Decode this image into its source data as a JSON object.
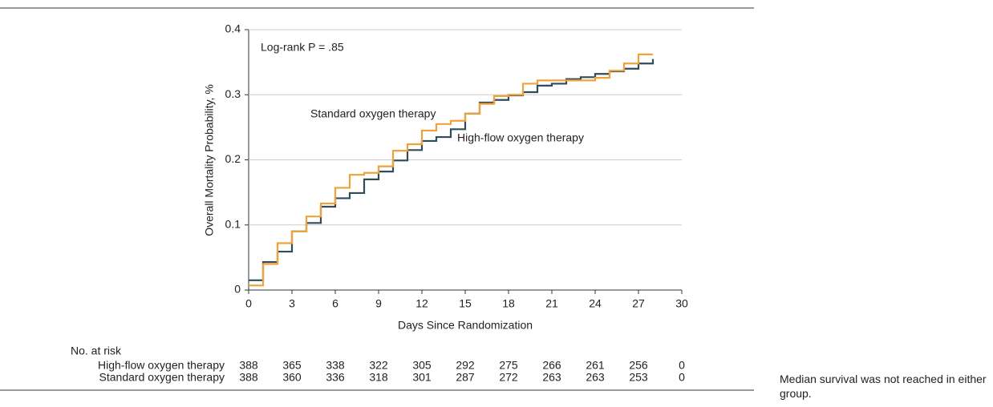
{
  "chart_data": {
    "type": "step",
    "annotation": "Log-rank P = .85",
    "ylabel": "Overall Mortality Probability, %",
    "xlabel": "Days Since Randomization",
    "xlim": [
      0,
      30
    ],
    "xticks": [
      0,
      3,
      6,
      9,
      12,
      15,
      18,
      21,
      24,
      27,
      30
    ],
    "ylim": [
      0,
      0.4
    ],
    "yticks": [
      0,
      0.1,
      0.2,
      0.3,
      0.4
    ],
    "x": [
      0,
      1,
      2,
      3,
      4,
      5,
      6,
      7,
      8,
      9,
      10,
      11,
      12,
      13,
      14,
      15,
      16,
      17,
      18,
      19,
      20,
      21,
      22,
      23,
      24,
      25,
      26,
      27,
      28
    ],
    "series": [
      {
        "name": "High-flow oxygen therapy",
        "color": "#2f4b5c",
        "values": [
          0.015,
          0.043,
          0.059,
          0.09,
          0.103,
          0.128,
          0.141,
          0.149,
          0.17,
          0.182,
          0.199,
          0.215,
          0.229,
          0.235,
          0.247,
          0.271,
          0.288,
          0.292,
          0.299,
          0.304,
          0.314,
          0.317,
          0.324,
          0.327,
          0.332,
          0.336,
          0.34,
          0.348,
          0.355
        ],
        "at_risk": [
          388,
          365,
          338,
          322,
          305,
          292,
          275,
          266,
          261,
          256,
          0
        ]
      },
      {
        "name": "Standard oxygen therapy",
        "color": "#f0a23a",
        "values": [
          0.007,
          0.04,
          0.072,
          0.09,
          0.113,
          0.133,
          0.157,
          0.177,
          0.18,
          0.19,
          0.214,
          0.224,
          0.245,
          0.255,
          0.26,
          0.271,
          0.286,
          0.298,
          0.3,
          0.317,
          0.322,
          0.322,
          0.322,
          0.322,
          0.326,
          0.337,
          0.348,
          0.362,
          0.362
        ],
        "at_risk": [
          388,
          360,
          336,
          318,
          301,
          287,
          272,
          263,
          263,
          253,
          0
        ]
      }
    ],
    "at_risk_title": "No. at risk",
    "note": "Median survival was not reached in either group."
  }
}
